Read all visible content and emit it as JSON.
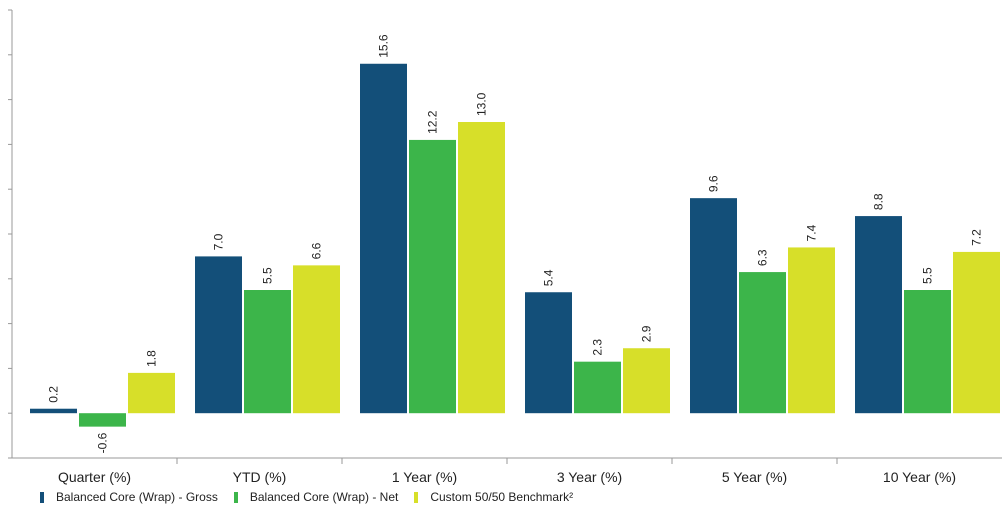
{
  "chart_data": {
    "type": "bar",
    "categories": [
      "Quarter (%)",
      "YTD (%)",
      "1 Year (%)",
      "3 Year (%)",
      "5 Year (%)",
      "10 Year (%)"
    ],
    "series": [
      {
        "name": "Balanced Core (Wrap) - Gross",
        "color": "#134f79",
        "values": [
          0.2,
          7.0,
          15.6,
          5.4,
          9.6,
          8.8
        ]
      },
      {
        "name": "Balanced Core (Wrap) - Net",
        "color": "#3cb54a",
        "values": [
          -0.6,
          5.5,
          12.2,
          2.3,
          6.3,
          5.5
        ]
      },
      {
        "name": "Custom 50/50 Benchmark²",
        "color": "#d7df29",
        "values": [
          1.8,
          6.6,
          13.0,
          2.9,
          7.4,
          7.2
        ]
      }
    ],
    "ylim": [
      -2,
      18
    ],
    "grid": false,
    "legend_position": "bottom-left",
    "data_labels": true
  }
}
